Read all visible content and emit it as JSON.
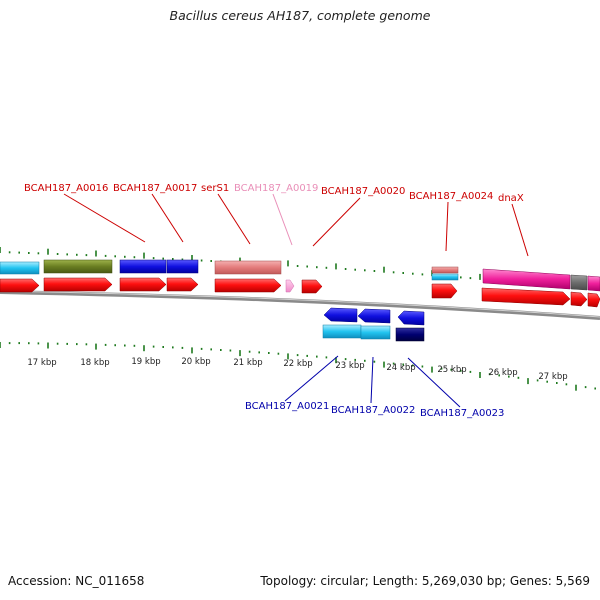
{
  "title": "Bacillus cereus AH187, complete genome",
  "footer": {
    "accession": "Accession: NC_011658",
    "summary": "Topology: circular; Length: 5,269,030 bp; Genes: 5,569"
  },
  "colors": {
    "backbone": "#8a8a8a",
    "tick": "#1f7a1f",
    "plus_label": "#cc0000",
    "minus_label": "#0000aa",
    "pale_label": "#e98fb8"
  },
  "kbp_labels": [
    "17 kbp",
    "18 kbp",
    "19 kbp",
    "20 kbp",
    "21 kbp",
    "22 kbp",
    "23 kbp",
    "24 kbp",
    "25 kbp",
    "26 kbp",
    "27 kbp"
  ],
  "gene_labels_top": [
    {
      "text": "BCAH187_A0016",
      "tone": "plus"
    },
    {
      "text": "BCAH187_A0017",
      "tone": "plus"
    },
    {
      "text": "serS1",
      "tone": "plus"
    },
    {
      "text": "BCAH187_A0019",
      "tone": "pale"
    },
    {
      "text": "BCAH187_A0020",
      "tone": "plus"
    },
    {
      "text": "BCAH187_A0024",
      "tone": "plus"
    },
    {
      "text": "dnaX",
      "tone": "plus"
    }
  ],
  "gene_labels_bottom": [
    {
      "text": "BCAH187_A0021",
      "tone": "minus"
    },
    {
      "text": "BCAH187_A0022",
      "tone": "minus"
    },
    {
      "text": "BCAH187_A0023",
      "tone": "minus"
    }
  ]
}
